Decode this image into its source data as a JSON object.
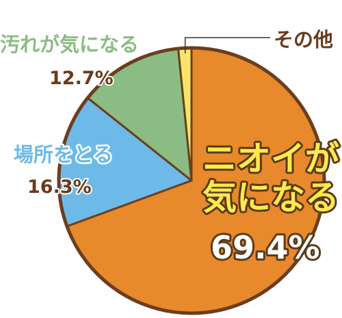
{
  "chart_data": {
    "type": "pie",
    "slices": [
      {
        "label": "ニオイが気になる",
        "label_lines": [
          "ニオイが",
          "気になる"
        ],
        "value": 69.4,
        "value_text": "69.4%",
        "color": "#E8892C"
      },
      {
        "label": "場所をとる",
        "label_lines": [
          "場所をとる"
        ],
        "value": 16.3,
        "value_text": "16.3%",
        "color": "#6DBAE8"
      },
      {
        "label": "汚れが気になる",
        "label_lines": [
          "汚れが気になる"
        ],
        "value": 12.7,
        "value_text": "12.7%",
        "color": "#8BBC83"
      },
      {
        "label": "その他",
        "label_lines": [
          "その他"
        ],
        "value": 1.6,
        "value_text": "",
        "color": "#F5E66A"
      }
    ],
    "outline_color": "#6B3E1E",
    "label_colors": {
      "main_fill": "#FFE94D",
      "main_value_fill": "#FFFFFF",
      "side_label": "#6A3A1A",
      "dark_stroke": "#5A3A1A"
    }
  }
}
